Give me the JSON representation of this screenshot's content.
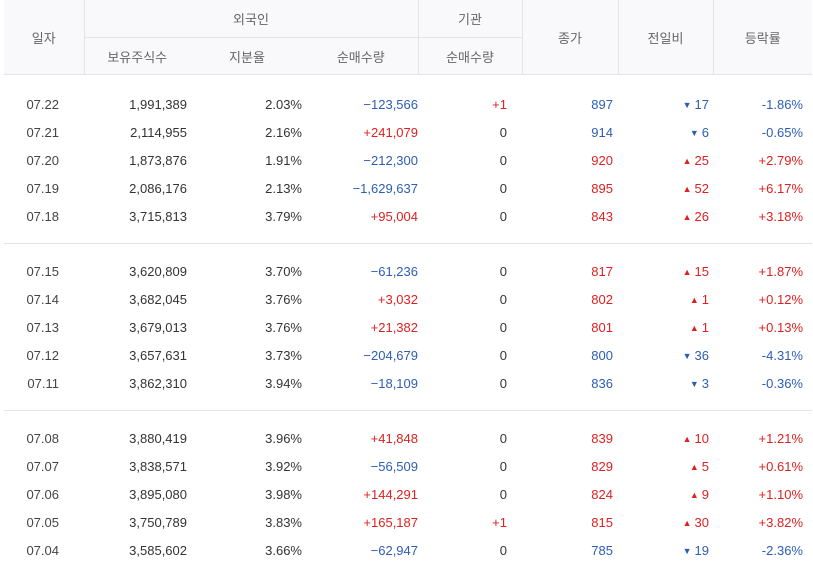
{
  "header": {
    "date": "일자",
    "foreign": "외국인",
    "institution": "기관",
    "close": "종가",
    "change": "전일비",
    "rate": "등락률",
    "holdings": "보유주식수",
    "share": "지분율",
    "foreign_net": "순매수량",
    "inst_net": "순매수량"
  },
  "colors": {
    "up": "#e02020",
    "down": "#2d5db5"
  },
  "groups": [
    [
      {
        "date": "07.22",
        "holdings": "1,991,389",
        "share": "2.03%",
        "foreign_net": "−123,566",
        "fdir": "down",
        "inst_net": "+1",
        "idir": "up",
        "close": "897",
        "cdir": "down",
        "chg_dir": "down",
        "chg": "17",
        "rate": "-1.86%",
        "rdir": "down"
      },
      {
        "date": "07.21",
        "holdings": "2,114,955",
        "share": "2.16%",
        "foreign_net": "+241,079",
        "fdir": "up",
        "inst_net": "0",
        "idir": "neu",
        "close": "914",
        "cdir": "down",
        "chg_dir": "down",
        "chg": "6",
        "rate": "-0.65%",
        "rdir": "down"
      },
      {
        "date": "07.20",
        "holdings": "1,873,876",
        "share": "1.91%",
        "foreign_net": "−212,300",
        "fdir": "down",
        "inst_net": "0",
        "idir": "neu",
        "close": "920",
        "cdir": "up",
        "chg_dir": "up",
        "chg": "25",
        "rate": "+2.79%",
        "rdir": "up"
      },
      {
        "date": "07.19",
        "holdings": "2,086,176",
        "share": "2.13%",
        "foreign_net": "−1,629,637",
        "fdir": "down",
        "inst_net": "0",
        "idir": "neu",
        "close": "895",
        "cdir": "up",
        "chg_dir": "up",
        "chg": "52",
        "rate": "+6.17%",
        "rdir": "up"
      },
      {
        "date": "07.18",
        "holdings": "3,715,813",
        "share": "3.79%",
        "foreign_net": "+95,004",
        "fdir": "up",
        "inst_net": "0",
        "idir": "neu",
        "close": "843",
        "cdir": "up",
        "chg_dir": "up",
        "chg": "26",
        "rate": "+3.18%",
        "rdir": "up"
      }
    ],
    [
      {
        "date": "07.15",
        "holdings": "3,620,809",
        "share": "3.70%",
        "foreign_net": "−61,236",
        "fdir": "down",
        "inst_net": "0",
        "idir": "neu",
        "close": "817",
        "cdir": "up",
        "chg_dir": "up",
        "chg": "15",
        "rate": "+1.87%",
        "rdir": "up"
      },
      {
        "date": "07.14",
        "holdings": "3,682,045",
        "share": "3.76%",
        "foreign_net": "+3,032",
        "fdir": "up",
        "inst_net": "0",
        "idir": "neu",
        "close": "802",
        "cdir": "up",
        "chg_dir": "up",
        "chg": "1",
        "rate": "+0.12%",
        "rdir": "up"
      },
      {
        "date": "07.13",
        "holdings": "3,679,013",
        "share": "3.76%",
        "foreign_net": "+21,382",
        "fdir": "up",
        "inst_net": "0",
        "idir": "neu",
        "close": "801",
        "cdir": "up",
        "chg_dir": "up",
        "chg": "1",
        "rate": "+0.13%",
        "rdir": "up"
      },
      {
        "date": "07.12",
        "holdings": "3,657,631",
        "share": "3.73%",
        "foreign_net": "−204,679",
        "fdir": "down",
        "inst_net": "0",
        "idir": "neu",
        "close": "800",
        "cdir": "down",
        "chg_dir": "down",
        "chg": "36",
        "rate": "-4.31%",
        "rdir": "down"
      },
      {
        "date": "07.11",
        "holdings": "3,862,310",
        "share": "3.94%",
        "foreign_net": "−18,109",
        "fdir": "down",
        "inst_net": "0",
        "idir": "neu",
        "close": "836",
        "cdir": "down",
        "chg_dir": "down",
        "chg": "3",
        "rate": "-0.36%",
        "rdir": "down"
      }
    ],
    [
      {
        "date": "07.08",
        "holdings": "3,880,419",
        "share": "3.96%",
        "foreign_net": "+41,848",
        "fdir": "up",
        "inst_net": "0",
        "idir": "neu",
        "close": "839",
        "cdir": "up",
        "chg_dir": "up",
        "chg": "10",
        "rate": "+1.21%",
        "rdir": "up"
      },
      {
        "date": "07.07",
        "holdings": "3,838,571",
        "share": "3.92%",
        "foreign_net": "−56,509",
        "fdir": "down",
        "inst_net": "0",
        "idir": "neu",
        "close": "829",
        "cdir": "up",
        "chg_dir": "up",
        "chg": "5",
        "rate": "+0.61%",
        "rdir": "up"
      },
      {
        "date": "07.06",
        "holdings": "3,895,080",
        "share": "3.98%",
        "foreign_net": "+144,291",
        "fdir": "up",
        "inst_net": "0",
        "idir": "neu",
        "close": "824",
        "cdir": "up",
        "chg_dir": "up",
        "chg": "9",
        "rate": "+1.10%",
        "rdir": "up"
      },
      {
        "date": "07.05",
        "holdings": "3,750,789",
        "share": "3.83%",
        "foreign_net": "+165,187",
        "fdir": "up",
        "inst_net": "+1",
        "idir": "up",
        "close": "815",
        "cdir": "up",
        "chg_dir": "up",
        "chg": "30",
        "rate": "+3.82%",
        "rdir": "up"
      },
      {
        "date": "07.04",
        "holdings": "3,585,602",
        "share": "3.66%",
        "foreign_net": "−62,947",
        "fdir": "down",
        "inst_net": "0",
        "idir": "neu",
        "close": "785",
        "cdir": "down",
        "chg_dir": "down",
        "chg": "19",
        "rate": "-2.36%",
        "rdir": "down"
      }
    ]
  ]
}
